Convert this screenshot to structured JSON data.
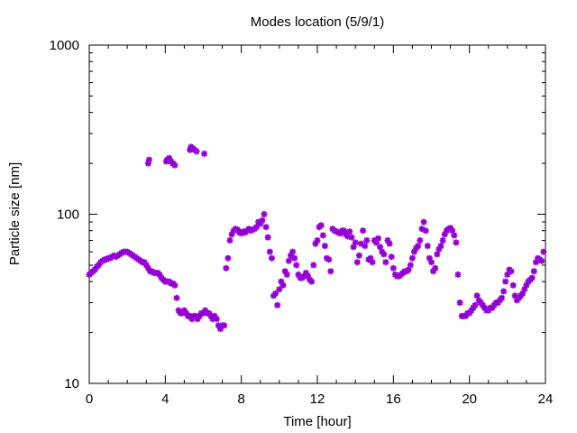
{
  "chart_data": {
    "type": "scatter",
    "title": "Modes location (5/9/1)",
    "xlabel": "Time [hour]",
    "ylabel": "Particle size [nm]",
    "xlim": [
      0,
      24
    ],
    "ylim": [
      10,
      1000
    ],
    "yscale": "log",
    "grid": false,
    "legend": "none",
    "color": "#9400d3",
    "x_ticks": [
      0,
      4,
      8,
      12,
      16,
      20,
      24
    ],
    "y_ticks": [
      10,
      100,
      1000
    ],
    "points": [
      [
        0.0,
        44
      ],
      [
        0.1,
        45
      ],
      [
        0.2,
        46
      ],
      [
        0.3,
        47
      ],
      [
        0.4,
        49
      ],
      [
        0.5,
        50
      ],
      [
        0.6,
        52
      ],
      [
        0.7,
        53
      ],
      [
        0.8,
        54
      ],
      [
        0.9,
        54
      ],
      [
        1.0,
        55
      ],
      [
        1.1,
        55
      ],
      [
        1.2,
        56
      ],
      [
        1.3,
        57
      ],
      [
        1.4,
        56
      ],
      [
        1.5,
        57
      ],
      [
        1.6,
        58
      ],
      [
        1.7,
        59
      ],
      [
        1.8,
        60
      ],
      [
        1.9,
        60
      ],
      [
        2.0,
        60
      ],
      [
        2.1,
        59
      ],
      [
        2.2,
        58
      ],
      [
        2.3,
        57
      ],
      [
        2.4,
        56
      ],
      [
        2.5,
        55
      ],
      [
        2.6,
        54
      ],
      [
        2.7,
        53
      ],
      [
        2.8,
        52
      ],
      [
        2.9,
        52
      ],
      [
        3.0,
        50
      ],
      [
        3.1,
        48
      ],
      [
        3.2,
        46
      ],
      [
        3.3,
        46
      ],
      [
        3.4,
        45
      ],
      [
        3.5,
        45
      ],
      [
        3.6,
        45
      ],
      [
        3.7,
        44
      ],
      [
        3.8,
        42
      ],
      [
        3.9,
        41
      ],
      [
        4.0,
        40
      ],
      [
        4.1,
        40
      ],
      [
        4.2,
        40
      ],
      [
        4.3,
        39
      ],
      [
        4.4,
        39
      ],
      [
        4.5,
        38
      ],
      [
        4.6,
        32
      ],
      [
        4.7,
        27
      ],
      [
        4.8,
        26
      ],
      [
        4.9,
        26
      ],
      [
        5.0,
        27
      ],
      [
        5.1,
        26
      ],
      [
        5.2,
        25
      ],
      [
        5.3,
        25
      ],
      [
        5.4,
        24
      ],
      [
        5.5,
        25
      ],
      [
        5.6,
        25
      ],
      [
        5.7,
        24
      ],
      [
        5.8,
        25
      ],
      [
        5.9,
        26
      ],
      [
        6.0,
        26
      ],
      [
        6.1,
        27
      ],
      [
        6.2,
        26
      ],
      [
        6.3,
        26
      ],
      [
        6.4,
        25
      ],
      [
        6.5,
        24
      ],
      [
        6.6,
        25
      ],
      [
        6.7,
        24
      ],
      [
        6.8,
        22
      ],
      [
        6.9,
        21
      ],
      [
        7.0,
        22
      ],
      [
        7.1,
        22
      ],
      [
        7.2,
        48
      ],
      [
        7.3,
        55
      ],
      [
        7.4,
        70
      ],
      [
        7.5,
        76
      ],
      [
        7.6,
        80
      ],
      [
        7.7,
        82
      ],
      [
        7.8,
        81
      ],
      [
        7.9,
        78
      ],
      [
        8.0,
        77
      ],
      [
        8.1,
        79
      ],
      [
        8.2,
        78
      ],
      [
        8.3,
        80
      ],
      [
        8.4,
        82
      ],
      [
        8.5,
        80
      ],
      [
        8.6,
        81
      ],
      [
        8.7,
        82
      ],
      [
        8.8,
        84
      ],
      [
        8.9,
        90
      ],
      [
        9.0,
        88
      ],
      [
        9.1,
        92
      ],
      [
        9.2,
        100
      ],
      [
        9.3,
        84
      ],
      [
        9.4,
        73
      ],
      [
        9.5,
        60
      ],
      [
        9.6,
        55
      ],
      [
        9.7,
        33
      ],
      [
        9.8,
        34
      ],
      [
        9.9,
        29
      ],
      [
        10.0,
        36
      ],
      [
        10.1,
        40
      ],
      [
        10.2,
        38
      ],
      [
        10.3,
        46
      ],
      [
        10.4,
        44
      ],
      [
        10.5,
        53
      ],
      [
        10.6,
        57
      ],
      [
        10.7,
        60
      ],
      [
        10.8,
        55
      ],
      [
        10.9,
        50
      ],
      [
        11.0,
        44
      ],
      [
        11.1,
        42
      ],
      [
        11.2,
        42
      ],
      [
        11.3,
        43
      ],
      [
        11.4,
        45
      ],
      [
        11.5,
        43
      ],
      [
        11.6,
        41
      ],
      [
        11.7,
        40
      ],
      [
        11.8,
        50
      ],
      [
        11.9,
        67
      ],
      [
        12.0,
        70
      ],
      [
        12.1,
        84
      ],
      [
        12.2,
        86
      ],
      [
        12.3,
        75
      ],
      [
        12.4,
        65
      ],
      [
        12.5,
        55
      ],
      [
        12.6,
        54
      ],
      [
        12.7,
        46
      ],
      [
        12.8,
        82
      ],
      [
        12.9,
        80
      ],
      [
        13.0,
        79
      ],
      [
        13.1,
        78
      ],
      [
        13.2,
        77
      ],
      [
        13.3,
        80
      ],
      [
        13.4,
        80
      ],
      [
        13.5,
        76
      ],
      [
        13.6,
        74
      ],
      [
        13.7,
        79
      ],
      [
        13.8,
        73
      ],
      [
        13.9,
        64
      ],
      [
        14.0,
        68
      ],
      [
        14.1,
        52
      ],
      [
        14.2,
        57
      ],
      [
        14.3,
        67
      ],
      [
        14.4,
        80
      ],
      [
        14.5,
        65
      ],
      [
        14.6,
        70
      ],
      [
        14.7,
        54
      ],
      [
        14.8,
        55
      ],
      [
        14.9,
        52
      ],
      [
        15.0,
        70
      ],
      [
        15.1,
        68
      ],
      [
        15.2,
        72
      ],
      [
        15.3,
        64
      ],
      [
        15.4,
        60
      ],
      [
        15.5,
        58
      ],
      [
        15.6,
        52
      ],
      [
        15.7,
        70
      ],
      [
        15.8,
        67
      ],
      [
        15.9,
        56
      ],
      [
        16.0,
        48
      ],
      [
        16.1,
        44
      ],
      [
        16.2,
        43
      ],
      [
        16.3,
        43
      ],
      [
        16.4,
        44
      ],
      [
        16.5,
        45
      ],
      [
        16.6,
        46
      ],
      [
        16.7,
        46
      ],
      [
        16.8,
        47
      ],
      [
        16.9,
        50
      ],
      [
        17.0,
        55
      ],
      [
        17.1,
        60
      ],
      [
        17.2,
        63
      ],
      [
        17.3,
        65
      ],
      [
        17.4,
        70
      ],
      [
        17.5,
        82
      ],
      [
        17.6,
        90
      ],
      [
        17.7,
        80
      ],
      [
        17.8,
        65
      ],
      [
        17.9,
        55
      ],
      [
        18.0,
        52
      ],
      [
        18.1,
        46
      ],
      [
        18.2,
        48
      ],
      [
        18.3,
        58
      ],
      [
        18.4,
        62
      ],
      [
        18.5,
        65
      ],
      [
        18.6,
        70
      ],
      [
        18.7,
        76
      ],
      [
        18.8,
        80
      ],
      [
        18.9,
        82
      ],
      [
        19.0,
        83
      ],
      [
        19.1,
        80
      ],
      [
        19.2,
        75
      ],
      [
        19.3,
        68
      ],
      [
        19.4,
        44
      ],
      [
        19.5,
        30
      ],
      [
        19.6,
        25
      ],
      [
        19.7,
        25
      ],
      [
        19.8,
        25
      ],
      [
        19.9,
        26
      ],
      [
        20.0,
        26
      ],
      [
        20.1,
        27
      ],
      [
        20.2,
        28
      ],
      [
        20.3,
        29
      ],
      [
        20.4,
        33
      ],
      [
        20.5,
        31
      ],
      [
        20.6,
        30
      ],
      [
        20.7,
        29
      ],
      [
        20.8,
        28
      ],
      [
        20.9,
        27
      ],
      [
        21.0,
        27
      ],
      [
        21.1,
        28
      ],
      [
        21.2,
        28
      ],
      [
        21.3,
        29
      ],
      [
        21.4,
        30
      ],
      [
        21.5,
        30
      ],
      [
        21.6,
        31
      ],
      [
        21.7,
        32
      ],
      [
        21.8,
        35
      ],
      [
        21.9,
        40
      ],
      [
        22.0,
        44
      ],
      [
        22.1,
        47
      ],
      [
        22.2,
        46
      ],
      [
        22.3,
        38
      ],
      [
        22.4,
        33
      ],
      [
        22.5,
        31
      ],
      [
        22.6,
        32
      ],
      [
        22.7,
        33
      ],
      [
        22.8,
        34
      ],
      [
        22.9,
        36
      ],
      [
        23.0,
        38
      ],
      [
        23.1,
        40
      ],
      [
        23.2,
        41
      ],
      [
        23.3,
        42
      ],
      [
        23.4,
        46
      ],
      [
        23.5,
        52
      ],
      [
        23.6,
        55
      ],
      [
        23.7,
        54
      ],
      [
        23.8,
        53
      ],
      [
        23.9,
        60
      ],
      [
        3.1,
        200
      ],
      [
        3.15,
        210
      ],
      [
        4.05,
        205
      ],
      [
        4.1,
        210
      ],
      [
        4.2,
        215
      ],
      [
        4.3,
        205
      ],
      [
        4.4,
        200
      ],
      [
        4.5,
        195
      ],
      [
        5.3,
        240
      ],
      [
        5.35,
        250
      ],
      [
        5.45,
        245
      ],
      [
        5.55,
        240
      ],
      [
        5.65,
        235
      ],
      [
        6.05,
        228
      ]
    ]
  }
}
